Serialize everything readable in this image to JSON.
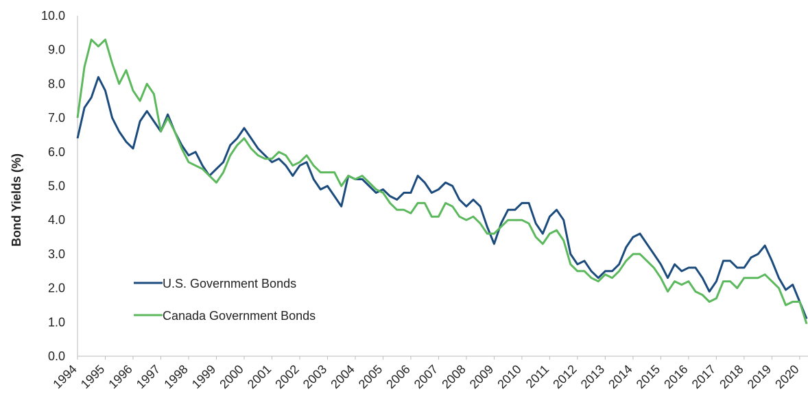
{
  "chart_data": {
    "type": "line",
    "y_label": "Bond Yields (%)",
    "x": [
      1994,
      1994.25,
      1994.5,
      1994.75,
      1995,
      1995.25,
      1995.5,
      1995.75,
      1996,
      1996.25,
      1996.5,
      1996.75,
      1997,
      1997.25,
      1997.5,
      1997.75,
      1998,
      1998.25,
      1998.5,
      1998.75,
      1999,
      1999.25,
      1999.5,
      1999.75,
      2000,
      2000.25,
      2000.5,
      2000.75,
      2001,
      2001.25,
      2001.5,
      2001.75,
      2002,
      2002.25,
      2002.5,
      2002.75,
      2003,
      2003.25,
      2003.5,
      2003.75,
      2004,
      2004.25,
      2004.5,
      2004.75,
      2005,
      2005.25,
      2005.5,
      2005.75,
      2006,
      2006.25,
      2006.5,
      2006.75,
      2007,
      2007.25,
      2007.5,
      2007.75,
      2008,
      2008.25,
      2008.5,
      2008.75,
      2009,
      2009.25,
      2009.5,
      2009.75,
      2010,
      2010.25,
      2010.5,
      2010.75,
      2011,
      2011.25,
      2011.5,
      2011.75,
      2012,
      2012.25,
      2012.5,
      2012.75,
      2013,
      2013.25,
      2013.5,
      2013.75,
      2014,
      2014.25,
      2014.5,
      2014.75,
      2015,
      2015.25,
      2015.5,
      2015.75,
      2016,
      2016.25,
      2016.5,
      2016.75,
      2017,
      2017.25,
      2017.5,
      2017.75,
      2018,
      2018.25,
      2018.5,
      2018.75,
      2019,
      2019.25,
      2019.5,
      2019.75,
      2020,
      2020.25
    ],
    "series": [
      {
        "name": "U.S. Government Bonds",
        "color": "#1b4a7c",
        "values": [
          6.4,
          7.3,
          7.6,
          8.2,
          7.8,
          7.0,
          6.6,
          6.3,
          6.1,
          6.9,
          7.2,
          6.9,
          6.6,
          7.1,
          6.6,
          6.2,
          5.9,
          6.0,
          5.6,
          5.3,
          5.5,
          5.7,
          6.2,
          6.4,
          6.7,
          6.4,
          6.1,
          5.9,
          5.7,
          5.8,
          5.6,
          5.3,
          5.6,
          5.7,
          5.2,
          4.9,
          5.0,
          4.7,
          4.4,
          5.3,
          5.2,
          5.2,
          5.0,
          4.8,
          4.9,
          4.7,
          4.6,
          4.8,
          4.8,
          5.3,
          5.1,
          4.8,
          4.9,
          5.1,
          5.0,
          4.6,
          4.4,
          4.6,
          4.4,
          3.8,
          3.3,
          3.9,
          4.3,
          4.3,
          4.5,
          4.5,
          3.9,
          3.6,
          4.1,
          4.3,
          4.0,
          3.0,
          2.7,
          2.8,
          2.5,
          2.3,
          2.5,
          2.5,
          2.7,
          3.2,
          3.5,
          3.6,
          3.3,
          3.0,
          2.7,
          2.3,
          2.7,
          2.5,
          2.6,
          2.6,
          2.3,
          1.9,
          2.2,
          2.8,
          2.8,
          2.6,
          2.6,
          2.9,
          3.0,
          3.25,
          2.8,
          2.3,
          1.95,
          2.1,
          1.6,
          1.1
        ]
      },
      {
        "name": "Canada Government Bonds",
        "color": "#5cb85c",
        "values": [
          7.0,
          8.5,
          9.3,
          9.1,
          9.3,
          8.6,
          8.0,
          8.4,
          7.8,
          7.5,
          8.0,
          7.7,
          6.6,
          7.0,
          6.6,
          6.1,
          5.7,
          5.6,
          5.5,
          5.3,
          5.1,
          5.4,
          5.9,
          6.2,
          6.4,
          6.1,
          5.9,
          5.8,
          5.8,
          6.0,
          5.9,
          5.6,
          5.7,
          5.9,
          5.6,
          5.4,
          5.4,
          5.4,
          5.0,
          5.3,
          5.2,
          5.3,
          5.1,
          4.9,
          4.8,
          4.5,
          4.3,
          4.3,
          4.2,
          4.5,
          4.5,
          4.1,
          4.1,
          4.5,
          4.4,
          4.1,
          4.0,
          4.1,
          3.9,
          3.6,
          3.6,
          3.8,
          4.0,
          4.0,
          4.0,
          3.9,
          3.5,
          3.3,
          3.6,
          3.7,
          3.4,
          2.7,
          2.5,
          2.5,
          2.3,
          2.2,
          2.4,
          2.3,
          2.5,
          2.8,
          3.0,
          3.0,
          2.8,
          2.6,
          2.3,
          1.9,
          2.2,
          2.1,
          2.2,
          1.9,
          1.8,
          1.6,
          1.7,
          2.2,
          2.2,
          2.0,
          2.3,
          2.3,
          2.3,
          2.4,
          2.2,
          2.0,
          1.5,
          1.6,
          1.6,
          0.95
        ]
      }
    ],
    "xlim": [
      1994,
      2020.3
    ],
    "xticks": [
      1994,
      1995,
      1996,
      1997,
      1998,
      1999,
      2000,
      2001,
      2002,
      2003,
      2004,
      2005,
      2006,
      2007,
      2008,
      2009,
      2010,
      2011,
      2012,
      2013,
      2014,
      2015,
      2016,
      2017,
      2018,
      2019,
      2020
    ],
    "ylim": [
      0,
      10
    ],
    "yticks": [
      {
        "value": 0,
        "label": "0.0"
      },
      {
        "value": 1,
        "label": "1.0"
      },
      {
        "value": 2,
        "label": "2.0"
      },
      {
        "value": 3,
        "label": "3.0"
      },
      {
        "value": 4,
        "label": "4.0"
      },
      {
        "value": 5,
        "label": "5.0"
      },
      {
        "value": 6,
        "label": "6.0"
      },
      {
        "value": 7,
        "label": "7.0"
      },
      {
        "value": 8,
        "label": "8.0"
      },
      {
        "value": 9,
        "label": "9.0"
      },
      {
        "value": 10,
        "label": "10.0"
      }
    ],
    "legend": "lower-left"
  }
}
